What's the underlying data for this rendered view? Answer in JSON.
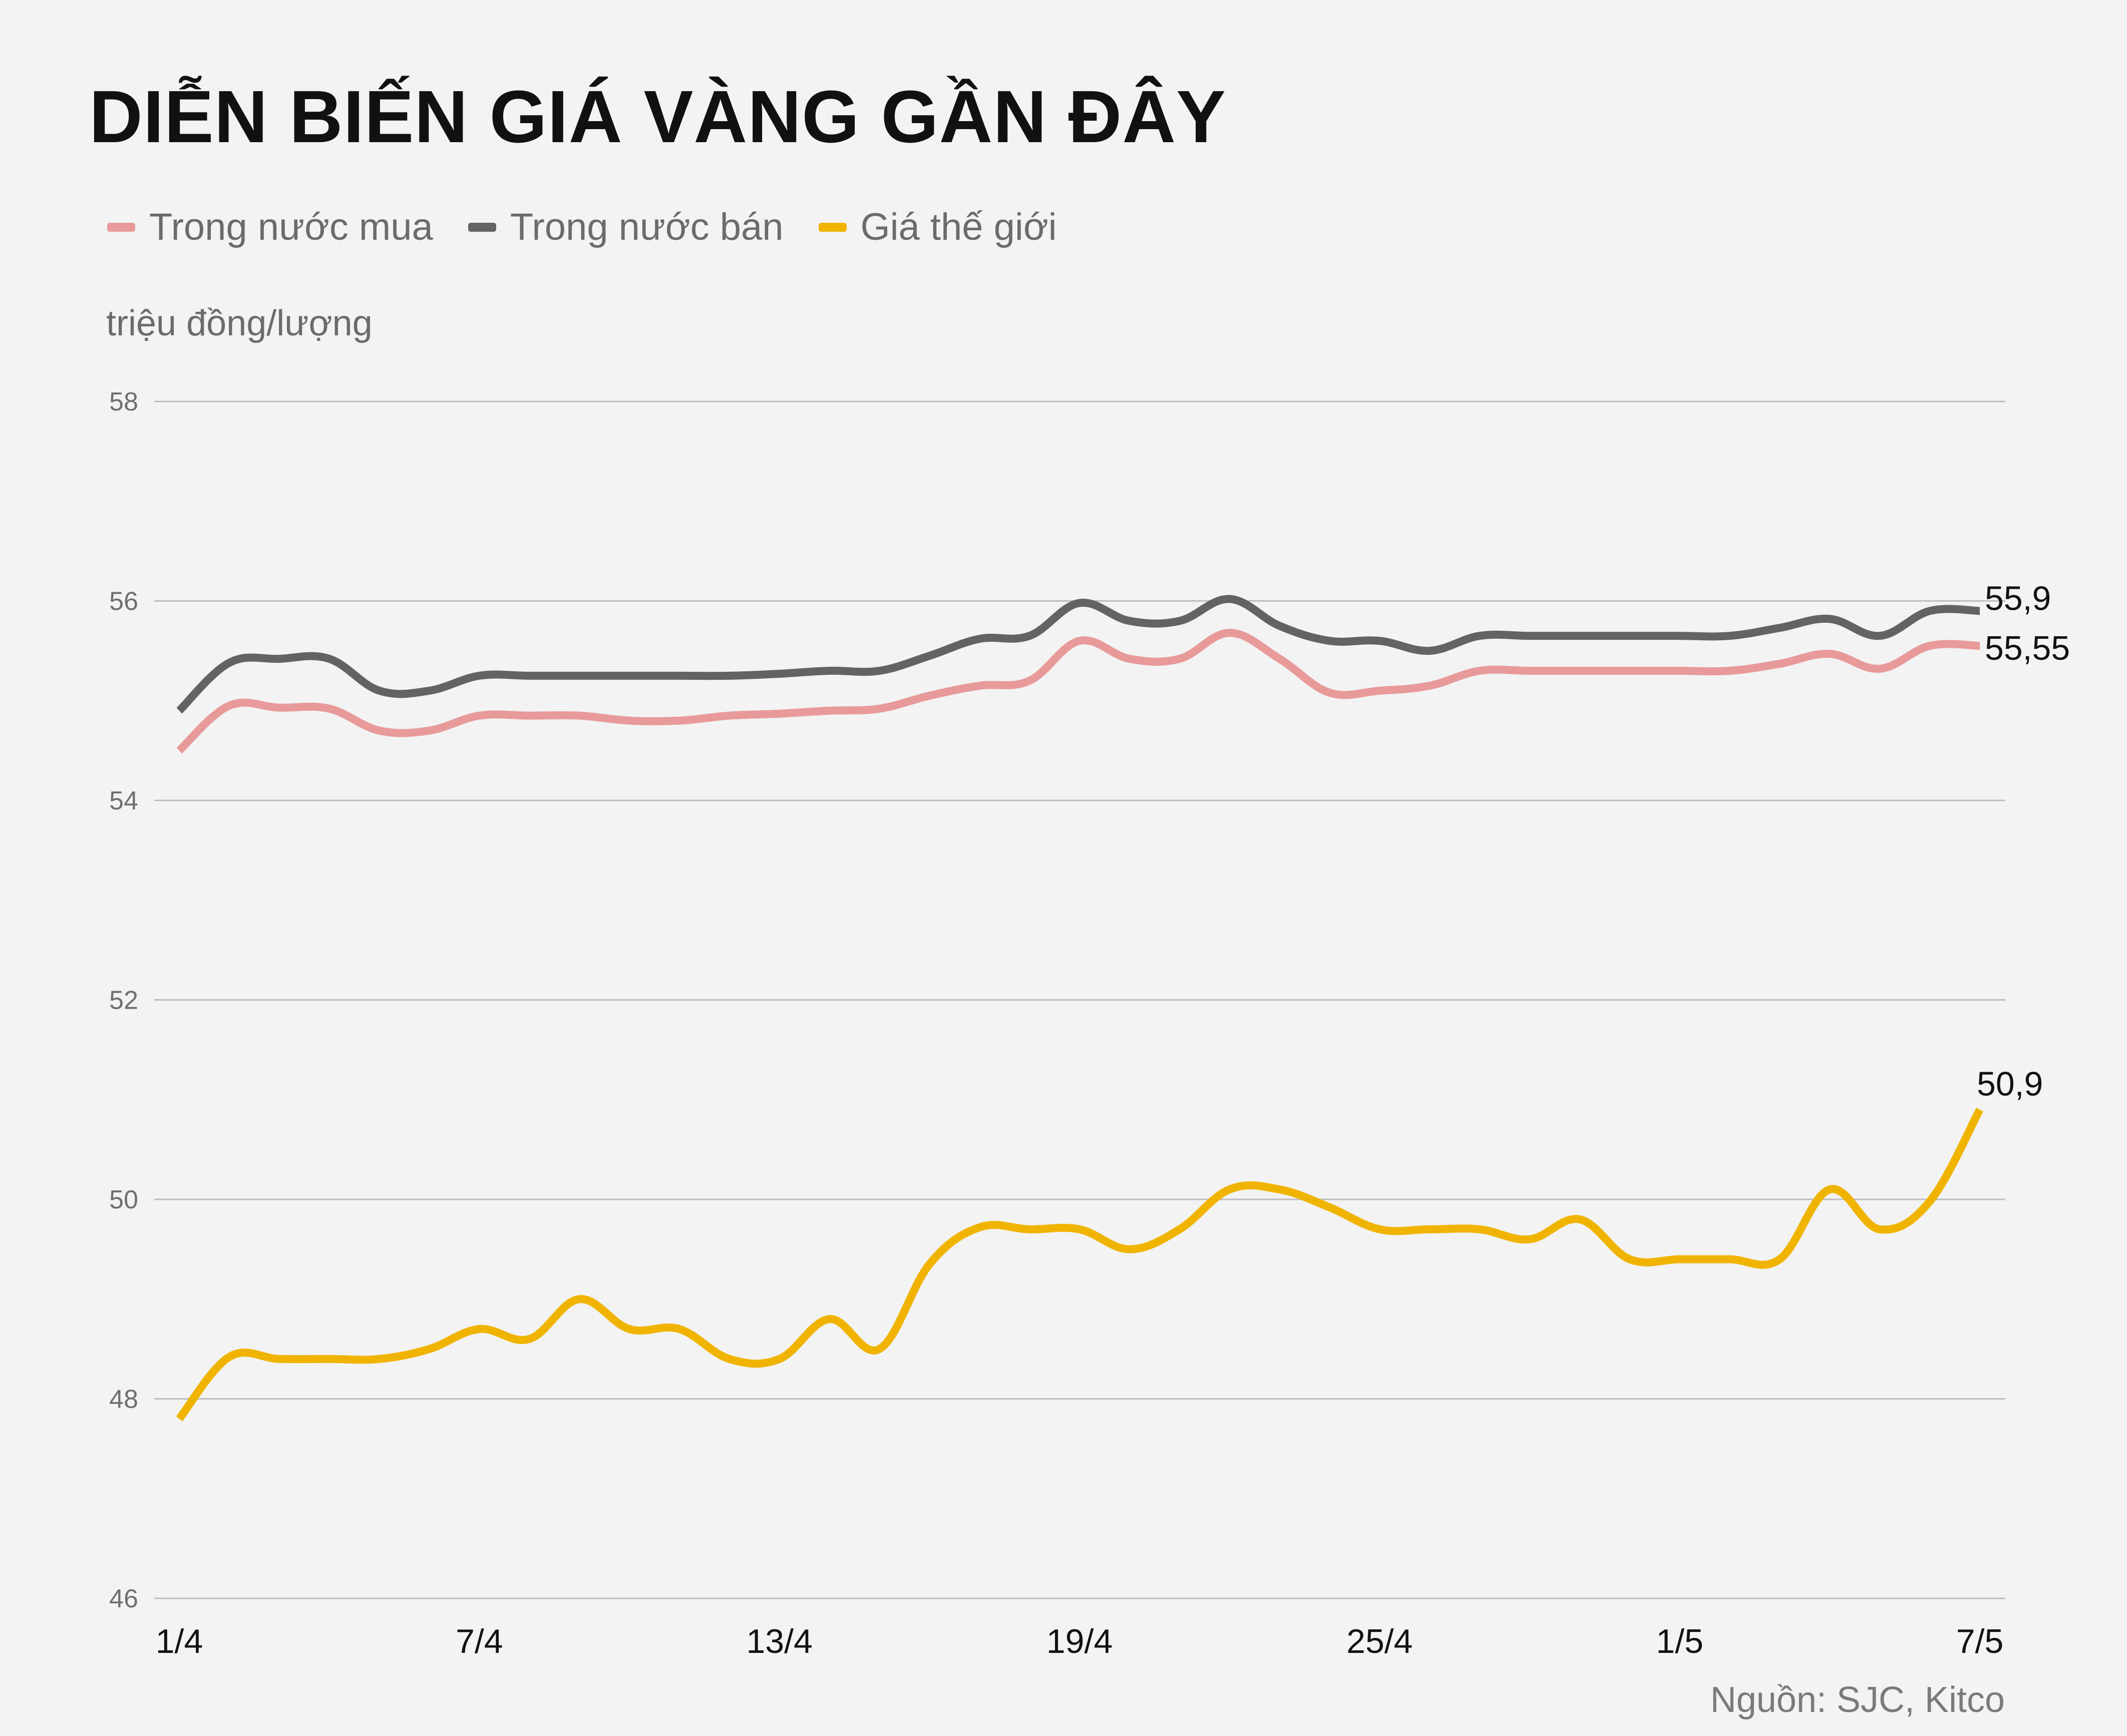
{
  "title": "DIỄN BIẾN GIÁ VÀNG GẦN ĐÂY",
  "unit_label": "triệu đồng/lượng",
  "source": "Nguồn: SJC, Kitco",
  "legend": [
    {
      "name": "Trong nước mua",
      "color": "#e89a9a"
    },
    {
      "name": "Trong nước bán",
      "color": "#636363"
    },
    {
      "name": "Giá thế giới",
      "color": "#f0b400"
    }
  ],
  "chart_data": {
    "type": "line",
    "title": "DIỄN BIẾN GIÁ VÀNG GẦN ĐÂY",
    "xlabel": "",
    "ylabel": "triệu đồng/lượng",
    "ylim": [
      46,
      58
    ],
    "y_ticks": [
      46,
      48,
      50,
      52,
      54,
      56,
      58
    ],
    "grid": true,
    "legend_position": "top-left",
    "x": [
      "1/4",
      "2/4",
      "3/4",
      "4/4",
      "5/4",
      "6/4",
      "7/4",
      "8/4",
      "9/4",
      "10/4",
      "11/4",
      "12/4",
      "13/4",
      "14/4",
      "15/4",
      "16/4",
      "17/4",
      "18/4",
      "19/4",
      "20/4",
      "21/4",
      "22/4",
      "23/4",
      "24/4",
      "25/4",
      "26/4",
      "27/4",
      "28/4",
      "29/4",
      "30/4",
      "1/5",
      "2/5",
      "3/5",
      "4/5",
      "5/5",
      "6/5",
      "7/5"
    ],
    "x_tick_labels": [
      "1/4",
      "7/4",
      "13/4",
      "19/4",
      "25/4",
      "1/5",
      "7/5"
    ],
    "series": [
      {
        "name": "Trong nước mua",
        "color": "#e89a9a",
        "values": [
          54.5,
          54.95,
          54.93,
          54.92,
          54.7,
          54.7,
          54.85,
          54.85,
          54.85,
          54.8,
          54.8,
          54.85,
          54.87,
          54.9,
          54.92,
          55.05,
          55.15,
          55.2,
          55.6,
          55.42,
          55.42,
          55.68,
          55.42,
          55.08,
          55.1,
          55.15,
          55.3,
          55.3,
          55.3,
          55.3,
          55.3,
          55.3,
          55.37,
          55.47,
          55.32,
          55.55,
          55.55
        ]
      },
      {
        "name": "Trong nước bán",
        "color": "#636363",
        "values": [
          54.9,
          55.38,
          55.42,
          55.42,
          55.1,
          55.1,
          55.25,
          55.25,
          55.25,
          55.25,
          55.25,
          55.25,
          55.27,
          55.3,
          55.3,
          55.45,
          55.62,
          55.65,
          55.98,
          55.8,
          55.8,
          56.02,
          55.75,
          55.6,
          55.6,
          55.5,
          55.65,
          55.65,
          55.65,
          55.65,
          55.65,
          55.65,
          55.73,
          55.82,
          55.65,
          55.9,
          55.9
        ]
      },
      {
        "name": "Giá thế giới",
        "color": "#f0b400",
        "values": [
          47.8,
          48.42,
          48.4,
          48.4,
          48.4,
          48.5,
          48.7,
          48.6,
          49.0,
          48.7,
          48.7,
          48.4,
          48.4,
          48.8,
          48.5,
          49.35,
          49.72,
          49.7,
          49.7,
          49.5,
          49.7,
          50.1,
          50.1,
          49.92,
          49.7,
          49.7,
          49.7,
          49.6,
          49.8,
          49.4,
          49.4,
          49.4,
          49.4,
          50.1,
          49.7,
          49.98,
          50.9
        ]
      }
    ],
    "end_labels": [
      "55,55",
      "55,9",
      "50,9"
    ]
  }
}
